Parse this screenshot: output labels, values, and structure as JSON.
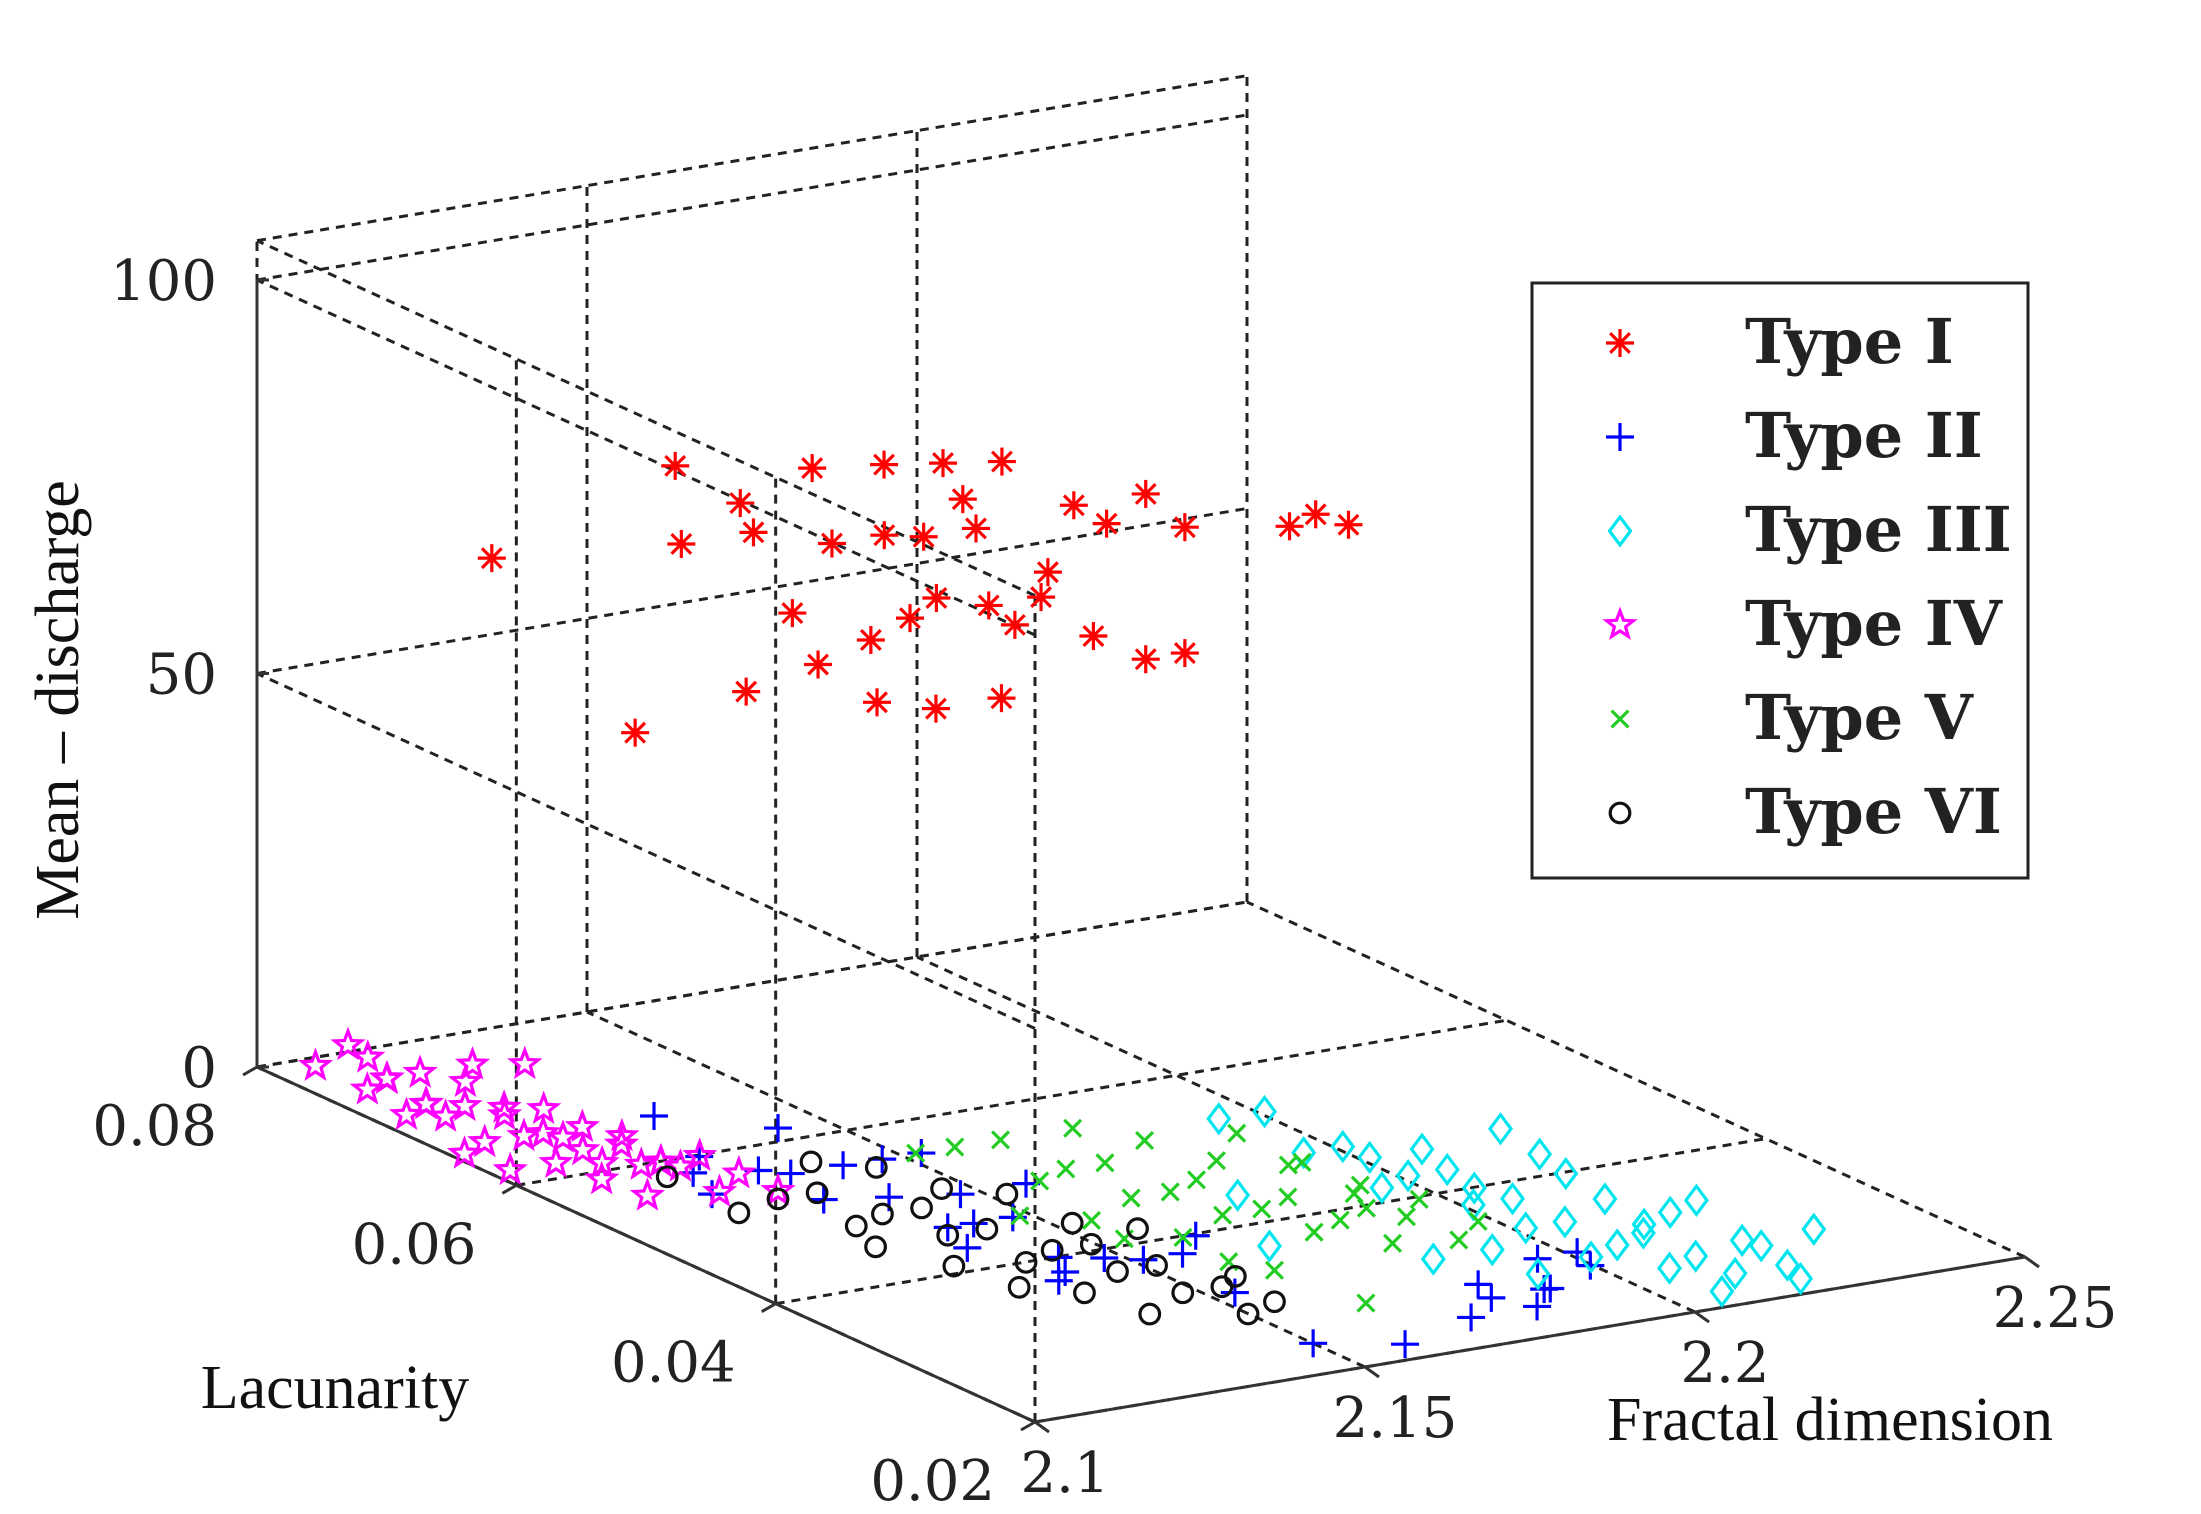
{
  "chart_data": {
    "type": "scatter",
    "dimensions": "3d",
    "xlabel": "Fractal dimension",
    "ylabel": "Lacunarity",
    "zlabel": "Mean – discharge",
    "xlim": [
      2.1,
      2.25
    ],
    "ylim": [
      0.02,
      0.08
    ],
    "zlim": [
      0,
      100
    ],
    "x_ticks": [
      "2.1",
      "2.15",
      "2.2",
      "2.25"
    ],
    "y_ticks": [
      "0.02",
      "0.04",
      "0.06",
      "0.08"
    ],
    "z_ticks": [
      "0",
      "50",
      "100"
    ],
    "grid": true,
    "legend_position": "top-right",
    "series": [
      {
        "name": "Type I",
        "marker": "asterisk",
        "color": "#ff0000",
        "points": [
          [
            2.125,
            0.06,
            78
          ],
          [
            2.13,
            0.058,
            84
          ],
          [
            2.128,
            0.062,
            86
          ],
          [
            2.135,
            0.055,
            90
          ],
          [
            2.14,
            0.052,
            92
          ],
          [
            2.145,
            0.05,
            93
          ],
          [
            2.15,
            0.048,
            94
          ],
          [
            2.148,
            0.05,
            88
          ],
          [
            2.155,
            0.045,
            90
          ],
          [
            2.16,
            0.042,
            93
          ],
          [
            2.162,
            0.04,
            90
          ],
          [
            2.158,
            0.044,
            88
          ],
          [
            2.17,
            0.036,
            92
          ],
          [
            2.172,
            0.035,
            94
          ],
          [
            2.175,
            0.034,
            93
          ],
          [
            2.132,
            0.058,
            80
          ],
          [
            2.138,
            0.055,
            80
          ],
          [
            2.142,
            0.053,
            82
          ],
          [
            2.146,
            0.052,
            82
          ],
          [
            2.15,
            0.05,
            84
          ],
          [
            2.155,
            0.047,
            80
          ],
          [
            2.132,
            0.055,
            72
          ],
          [
            2.138,
            0.052,
            70
          ],
          [
            2.14,
            0.05,
            74
          ],
          [
            2.144,
            0.05,
            76
          ],
          [
            2.148,
            0.048,
            76
          ],
          [
            2.15,
            0.047,
            74
          ],
          [
            2.152,
            0.046,
            78
          ],
          [
            2.156,
            0.044,
            74
          ],
          [
            2.16,
            0.042,
            72
          ],
          [
            2.125,
            0.055,
            63
          ],
          [
            2.13,
            0.052,
            68
          ],
          [
            2.135,
            0.05,
            64
          ],
          [
            2.14,
            0.048,
            64
          ],
          [
            2.146,
            0.046,
            66
          ],
          [
            2.112,
            0.068,
            72
          ],
          [
            2.118,
            0.06,
            55
          ],
          [
            2.162,
            0.04,
            74
          ]
        ]
      },
      {
        "name": "Type II",
        "marker": "plus",
        "color": "#0000ff",
        "points": [
          [
            2.11,
            0.05,
            5
          ],
          [
            2.112,
            0.052,
            8
          ],
          [
            2.113,
            0.056,
            10
          ],
          [
            2.118,
            0.048,
            8
          ],
          [
            2.12,
            0.05,
            12
          ],
          [
            2.122,
            0.046,
            10
          ],
          [
            2.124,
            0.044,
            12
          ],
          [
            2.126,
            0.042,
            14
          ],
          [
            2.128,
            0.04,
            10
          ],
          [
            2.13,
            0.04,
            6
          ],
          [
            2.132,
            0.038,
            8
          ],
          [
            2.134,
            0.038,
            12
          ],
          [
            2.135,
            0.036,
            4
          ],
          [
            2.136,
            0.036,
            2
          ],
          [
            2.138,
            0.034,
            5
          ],
          [
            2.14,
            0.032,
            6
          ],
          [
            2.142,
            0.03,
            8
          ],
          [
            2.144,
            0.03,
            10
          ],
          [
            2.13,
            0.042,
            4
          ],
          [
            2.115,
            0.054,
            4
          ],
          [
            2.119,
            0.051,
            6
          ],
          [
            2.123,
            0.048,
            4
          ],
          [
            2.127,
            0.045,
            6
          ],
          [
            2.131,
            0.041,
            2
          ],
          [
            2.137,
            0.037,
            0
          ],
          [
            2.146,
            0.028,
            4
          ],
          [
            2.15,
            0.024,
            0
          ],
          [
            2.16,
            0.022,
            0
          ],
          [
            2.17,
            0.022,
            2
          ],
          [
            2.175,
            0.024,
            4
          ],
          [
            2.177,
            0.024,
            2
          ],
          [
            2.18,
            0.022,
            2
          ],
          [
            2.182,
            0.022,
            4
          ],
          [
            2.184,
            0.024,
            6
          ],
          [
            2.185,
            0.024,
            2
          ],
          [
            2.19,
            0.024,
            6
          ],
          [
            2.192,
            0.024,
            4
          ]
        ]
      },
      {
        "name": "Type III",
        "marker": "diamond",
        "color": "#00e5ee",
        "points": [
          [
            2.175,
            0.044,
            10
          ],
          [
            2.178,
            0.042,
            12
          ],
          [
            2.18,
            0.04,
            8
          ],
          [
            2.182,
            0.038,
            10
          ],
          [
            2.184,
            0.036,
            6
          ],
          [
            2.186,
            0.035,
            8
          ],
          [
            2.188,
            0.033,
            10
          ],
          [
            2.19,
            0.032,
            6
          ],
          [
            2.192,
            0.03,
            8
          ],
          [
            2.194,
            0.03,
            4
          ],
          [
            2.196,
            0.028,
            6
          ],
          [
            2.198,
            0.027,
            2
          ],
          [
            2.2,
            0.026,
            4
          ],
          [
            2.202,
            0.025,
            6
          ],
          [
            2.204,
            0.024,
            2
          ],
          [
            2.206,
            0.023,
            4
          ],
          [
            2.208,
            0.022,
            0
          ],
          [
            2.21,
            0.022,
            2
          ],
          [
            2.212,
            0.021,
            6
          ],
          [
            2.214,
            0.02,
            4
          ],
          [
            2.216,
            0.02,
            2
          ],
          [
            2.218,
            0.02,
            8
          ],
          [
            2.2,
            0.035,
            12
          ],
          [
            2.202,
            0.033,
            10
          ],
          [
            2.204,
            0.032,
            8
          ],
          [
            2.206,
            0.03,
            6
          ],
          [
            2.208,
            0.028,
            4
          ],
          [
            2.21,
            0.027,
            6
          ],
          [
            2.212,
            0.026,
            8
          ],
          [
            2.215,
            0.024,
            4
          ],
          [
            2.19,
            0.04,
            6
          ],
          [
            2.194,
            0.038,
            8
          ],
          [
            2.198,
            0.036,
            4
          ],
          [
            2.17,
            0.04,
            4
          ],
          [
            2.165,
            0.035,
            2
          ],
          [
            2.18,
            0.03,
            2
          ],
          [
            2.185,
            0.028,
            4
          ],
          [
            2.188,
            0.026,
            2
          ]
        ]
      },
      {
        "name": "Type IV",
        "marker": "star",
        "color": "#ff00ff",
        "points": [
          [
            2.1,
            0.07,
            6
          ],
          [
            2.101,
            0.072,
            3
          ],
          [
            2.102,
            0.068,
            4
          ],
          [
            2.103,
            0.07,
            1
          ],
          [
            2.104,
            0.066,
            5
          ],
          [
            2.105,
            0.068,
            2
          ],
          [
            2.106,
            0.064,
            6
          ],
          [
            2.107,
            0.066,
            0
          ],
          [
            2.108,
            0.062,
            4
          ],
          [
            2.109,
            0.064,
            2
          ],
          [
            2.11,
            0.06,
            6
          ],
          [
            2.111,
            0.062,
            3
          ],
          [
            2.112,
            0.058,
            5
          ],
          [
            2.113,
            0.06,
            1
          ],
          [
            2.114,
            0.056,
            4
          ],
          [
            2.115,
            0.058,
            2
          ],
          [
            2.116,
            0.054,
            6
          ],
          [
            2.117,
            0.056,
            3
          ],
          [
            2.118,
            0.052,
            5
          ],
          [
            2.119,
            0.054,
            1
          ],
          [
            2.12,
            0.05,
            4
          ],
          [
            2.102,
            0.074,
            7
          ],
          [
            2.104,
            0.072,
            4
          ],
          [
            2.106,
            0.07,
            2
          ],
          [
            2.108,
            0.068,
            6
          ],
          [
            2.11,
            0.066,
            3
          ],
          [
            2.112,
            0.064,
            5
          ],
          [
            2.114,
            0.062,
            1
          ],
          [
            2.116,
            0.06,
            4
          ],
          [
            2.118,
            0.058,
            2
          ],
          [
            2.1,
            0.064,
            1
          ],
          [
            2.103,
            0.062,
            0
          ],
          [
            2.106,
            0.06,
            2
          ],
          [
            2.109,
            0.058,
            1
          ],
          [
            2.112,
            0.056,
            0
          ],
          [
            2.101,
            0.076,
            3
          ],
          [
            2.105,
            0.074,
            5
          ],
          [
            2.109,
            0.072,
            4
          ],
          [
            2.113,
            0.07,
            6
          ],
          [
            2.117,
            0.068,
            7
          ]
        ]
      },
      {
        "name": "Type V",
        "marker": "cross",
        "color": "#22cc22",
        "points": [
          [
            2.135,
            0.044,
            12
          ],
          [
            2.138,
            0.042,
            14
          ],
          [
            2.14,
            0.04,
            10
          ],
          [
            2.142,
            0.039,
            12
          ],
          [
            2.144,
            0.037,
            14
          ],
          [
            2.146,
            0.036,
            10
          ],
          [
            2.148,
            0.034,
            12
          ],
          [
            2.15,
            0.033,
            14
          ],
          [
            2.152,
            0.032,
            10
          ],
          [
            2.154,
            0.03,
            12
          ],
          [
            2.156,
            0.029,
            14
          ],
          [
            2.158,
            0.028,
            10
          ],
          [
            2.16,
            0.027,
            12
          ],
          [
            2.162,
            0.026,
            14
          ],
          [
            2.164,
            0.025,
            10
          ],
          [
            2.145,
            0.04,
            16
          ],
          [
            2.15,
            0.037,
            16
          ],
          [
            2.155,
            0.034,
            15
          ],
          [
            2.16,
            0.031,
            16
          ],
          [
            2.165,
            0.028,
            15
          ],
          [
            2.17,
            0.026,
            14
          ],
          [
            2.175,
            0.024,
            12
          ],
          [
            2.168,
            0.03,
            12
          ],
          [
            2.172,
            0.028,
            10
          ],
          [
            2.176,
            0.026,
            8
          ],
          [
            2.14,
            0.036,
            8
          ],
          [
            2.146,
            0.032,
            8
          ],
          [
            2.152,
            0.028,
            6
          ],
          [
            2.158,
            0.024,
            4
          ],
          [
            2.133,
            0.046,
            10
          ],
          [
            2.137,
            0.04,
            6
          ],
          [
            2.143,
            0.035,
            6
          ],
          [
            2.149,
            0.03,
            6
          ],
          [
            2.162,
            0.036,
            16
          ],
          [
            2.166,
            0.033,
            14
          ]
        ]
      },
      {
        "name": "Type VI",
        "marker": "circle",
        "color": "#111111",
        "points": [
          [
            2.12,
            0.05,
            3
          ],
          [
            2.122,
            0.048,
            5
          ],
          [
            2.124,
            0.046,
            2
          ],
          [
            2.126,
            0.045,
            4
          ],
          [
            2.128,
            0.043,
            6
          ],
          [
            2.13,
            0.042,
            3
          ],
          [
            2.132,
            0.04,
            5
          ],
          [
            2.134,
            0.038,
            2
          ],
          [
            2.136,
            0.037,
            4
          ],
          [
            2.138,
            0.035,
            6
          ],
          [
            2.14,
            0.034,
            3
          ],
          [
            2.142,
            0.032,
            5
          ],
          [
            2.144,
            0.031,
            2
          ],
          [
            2.146,
            0.029,
            4
          ],
          [
            2.148,
            0.028,
            1
          ],
          [
            2.125,
            0.05,
            7
          ],
          [
            2.129,
            0.047,
            8
          ],
          [
            2.133,
            0.044,
            7
          ],
          [
            2.137,
            0.041,
            8
          ],
          [
            2.141,
            0.038,
            6
          ],
          [
            2.145,
            0.035,
            7
          ],
          [
            2.127,
            0.04,
            1
          ],
          [
            2.131,
            0.037,
            0
          ],
          [
            2.135,
            0.034,
            1
          ],
          [
            2.139,
            0.031,
            0
          ],
          [
            2.115,
            0.056,
            2
          ],
          [
            2.118,
            0.052,
            0
          ],
          [
            2.15,
            0.03,
            4
          ],
          [
            2.152,
            0.028,
            2
          ],
          [
            2.123,
            0.044,
            1
          ]
        ]
      }
    ]
  }
}
